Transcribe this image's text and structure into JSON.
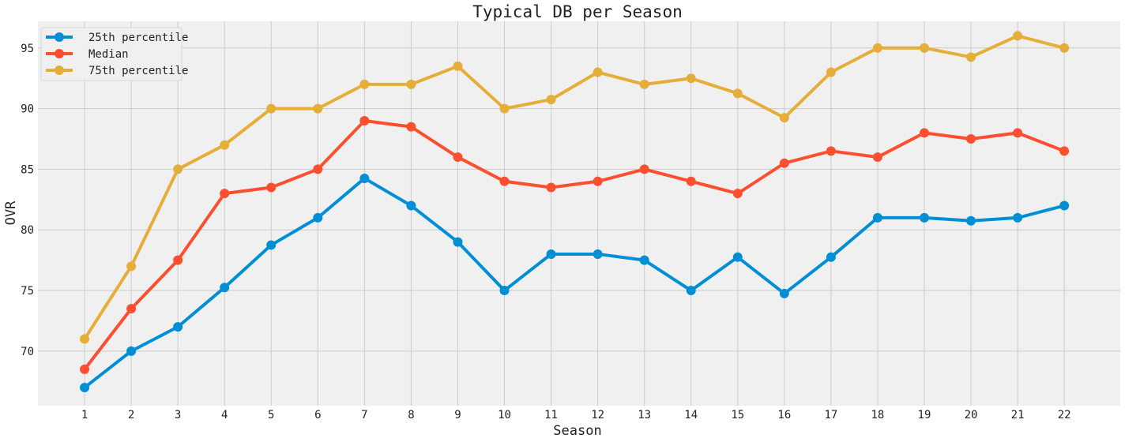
{
  "chart_data": {
    "type": "line",
    "title": "Typical DB per Season",
    "xlabel": "Season",
    "ylabel": "OVR",
    "x": [
      1,
      2,
      3,
      4,
      5,
      6,
      7,
      8,
      9,
      10,
      11,
      12,
      13,
      14,
      15,
      16,
      17,
      18,
      19,
      20,
      21,
      22
    ],
    "xlim": [
      0,
      23.2
    ],
    "ylim": [
      65.5,
      97.2
    ],
    "yticks": [
      70,
      75,
      80,
      85,
      90,
      95
    ],
    "grid": true,
    "legend_position": "top-left",
    "background": "#f0f0f0",
    "series": [
      {
        "name": "25th percentile",
        "color": "#008fd5",
        "values": [
          67,
          70,
          72,
          75.25,
          78.75,
          81,
          84.25,
          82,
          79,
          75,
          78,
          78,
          77.5,
          75,
          77.75,
          74.75,
          77.75,
          81,
          81,
          80.75,
          81,
          82
        ]
      },
      {
        "name": "Median",
        "color": "#fc4f30",
        "values": [
          68.5,
          73.5,
          77.5,
          83,
          83.5,
          85,
          89,
          88.5,
          86,
          84,
          83.5,
          84,
          85,
          84,
          83,
          85.5,
          86.5,
          86,
          88,
          87.5,
          88,
          86.5
        ]
      },
      {
        "name": "75th percentile",
        "color": "#e5ae38",
        "values": [
          71,
          77,
          85,
          87,
          90,
          90,
          92,
          92,
          93.5,
          90,
          90.75,
          93,
          92,
          92.5,
          91.25,
          89.25,
          93,
          95,
          95,
          94.25,
          96,
          95
        ]
      }
    ]
  }
}
